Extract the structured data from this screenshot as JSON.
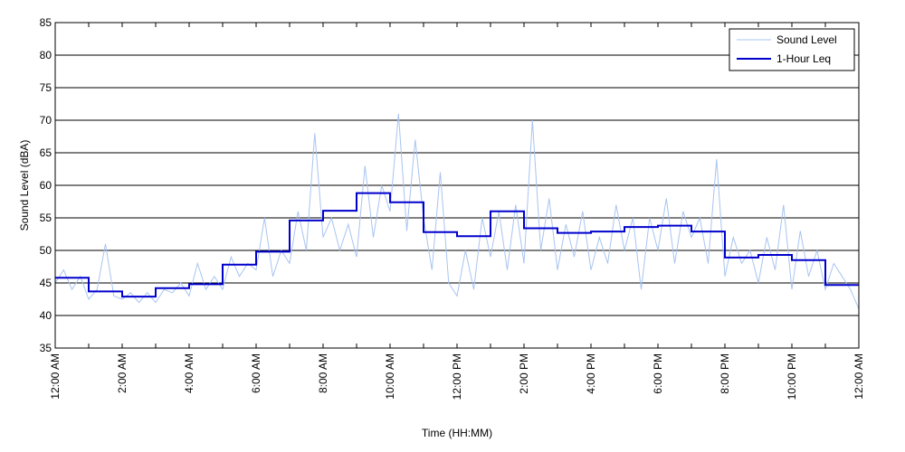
{
  "chart_data": {
    "type": "line",
    "xlabel": "Time (HH:MM)",
    "ylabel": "Sound Level (dBA)",
    "xlim": [
      0,
      24
    ],
    "ylim": [
      35,
      85
    ],
    "grid": "horizontal",
    "legend_position": "top-right",
    "x_ticks": [
      0,
      2,
      4,
      6,
      8,
      10,
      12,
      14,
      16,
      18,
      20,
      22,
      24
    ],
    "x_tick_labels": [
      "12:00 AM",
      "2:00 AM",
      "4:00 AM",
      "6:00 AM",
      "8:00 AM",
      "10:00 AM",
      "12:00 PM",
      "2:00 PM",
      "4:00 PM",
      "6:00 PM",
      "8:00 PM",
      "10:00 PM",
      "12:00 AM"
    ],
    "y_ticks": [
      35,
      40,
      45,
      50,
      55,
      60,
      65,
      70,
      75,
      80,
      85
    ],
    "y_tick_labels": [
      "35",
      "40",
      "45",
      "50",
      "55",
      "60",
      "65",
      "70",
      "75",
      "80",
      "85"
    ],
    "series": [
      {
        "name": "Sound Level",
        "color": "#a8c4f0",
        "style": "thin-line",
        "x": [
          0,
          0.25,
          0.5,
          0.75,
          1,
          1.25,
          1.5,
          1.75,
          2,
          2.25,
          2.5,
          2.75,
          3,
          3.25,
          3.5,
          3.75,
          4,
          4.25,
          4.5,
          4.75,
          5,
          5.25,
          5.5,
          5.75,
          6,
          6.25,
          6.5,
          6.75,
          7,
          7.25,
          7.5,
          7.75,
          8,
          8.25,
          8.5,
          8.75,
          9,
          9.25,
          9.5,
          9.75,
          10,
          10.25,
          10.5,
          10.75,
          11,
          11.25,
          11.5,
          11.75,
          12,
          12.25,
          12.5,
          12.75,
          13,
          13.25,
          13.5,
          13.75,
          14,
          14.25,
          14.5,
          14.75,
          15,
          15.25,
          15.5,
          15.75,
          16,
          16.25,
          16.5,
          16.75,
          17,
          17.25,
          17.5,
          17.75,
          18,
          18.25,
          18.5,
          18.75,
          19,
          19.25,
          19.5,
          19.75,
          20,
          20.25,
          20.5,
          20.75,
          21,
          21.25,
          21.5,
          21.75,
          22,
          22.25,
          22.5,
          22.75,
          23,
          23.25,
          23.5,
          23.75,
          24
        ],
        "values": [
          45,
          47,
          44,
          46,
          42.5,
          44,
          51,
          43,
          42.5,
          43.5,
          42,
          43.5,
          42,
          44,
          43.5,
          45,
          43,
          48,
          44,
          46,
          44,
          49,
          46,
          48,
          47,
          55,
          46,
          50,
          48,
          56,
          50,
          68,
          52,
          55,
          50,
          54,
          49,
          63,
          52,
          60,
          56,
          71,
          53,
          67,
          55,
          47,
          62,
          45,
          43,
          50,
          44,
          55,
          49,
          56,
          47,
          57,
          48,
          70,
          50,
          58,
          47,
          54,
          49,
          56,
          47,
          52,
          48,
          57,
          50,
          55,
          44,
          55,
          50,
          58,
          48,
          56,
          52,
          55,
          48,
          64,
          46,
          52,
          48,
          50,
          45,
          52,
          47,
          57,
          44,
          53,
          46,
          50,
          44,
          48,
          46,
          44,
          41
        ]
      },
      {
        "name": "1-Hour Leq",
        "color": "#0000cc",
        "style": "step",
        "bins_start_hour": [
          0,
          1,
          2,
          3,
          4,
          5,
          6,
          7,
          8,
          9,
          10,
          11,
          12,
          13,
          14,
          15,
          16,
          17,
          18,
          19,
          20,
          21,
          22,
          23
        ],
        "values": [
          45.8,
          43.7,
          42.9,
          44.2,
          44.8,
          47.8,
          49.8,
          54.6,
          56.1,
          58.8,
          57.4,
          52.8,
          52.2,
          56.0,
          53.4,
          52.7,
          52.9,
          53.6,
          53.8,
          52.9,
          48.9,
          49.3,
          48.5,
          44.7
        ]
      }
    ]
  }
}
